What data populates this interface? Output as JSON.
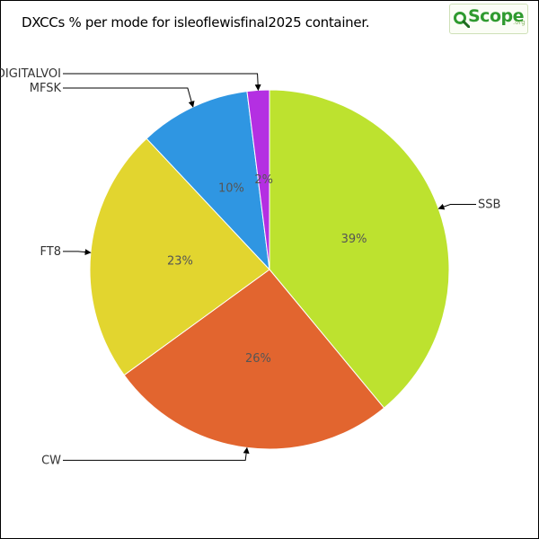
{
  "chart_data": {
    "type": "pie",
    "title": "DXCCs % per mode for isleoflewisfinal2025 container.",
    "categories": [
      "SSB",
      "CW",
      "FT8",
      "MFSK",
      "DIGITALVOI"
    ],
    "values": [
      39,
      26,
      23,
      10,
      2
    ],
    "percent_labels": [
      "39%",
      "26%",
      "23%",
      "10%",
      "2%"
    ],
    "colors": [
      "#bde22f",
      "#e2652f",
      "#e2d52f",
      "#2f96e2",
      "#b42fe2"
    ],
    "start_angle_deg": 0,
    "direction": "clockwise",
    "legend": "none"
  },
  "logo": {
    "text": "Scope",
    "sub": ".org",
    "icon": "magnifier-q-icon"
  }
}
